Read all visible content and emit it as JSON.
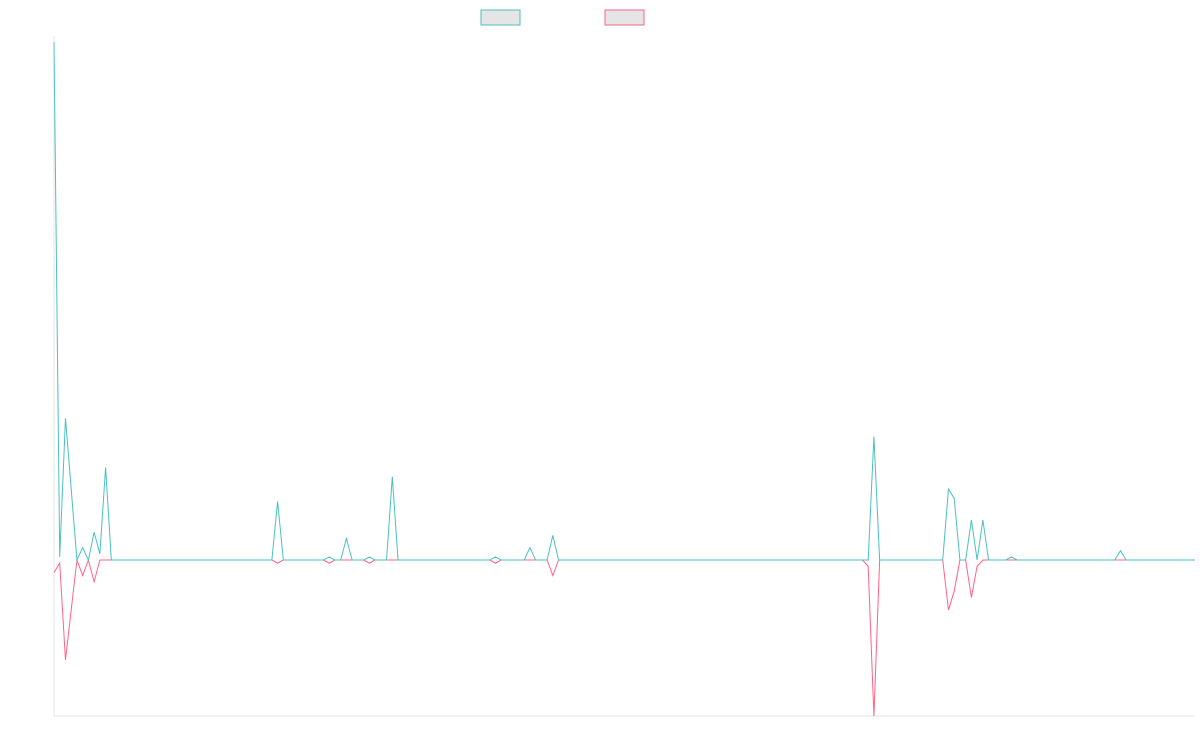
{
  "colors": {
    "series_a": "#4bc0c0",
    "series_b": "#ff6384",
    "legend_fill": "#e5e5e5",
    "axis": "#e6e6e6"
  },
  "chart_data": {
    "type": "line",
    "title": "",
    "xlabel": "",
    "ylabel": "",
    "grid": false,
    "legend_position": "top-center",
    "ylim": [
      -50,
      170
    ],
    "x_count": 200,
    "series": [
      {
        "name": "",
        "color_key": "series_a",
        "points": [
          [
            0,
            168
          ],
          [
            1,
            1
          ],
          [
            2,
            46
          ],
          [
            4,
            0
          ],
          [
            5,
            4
          ],
          [
            6,
            0
          ],
          [
            7,
            9
          ],
          [
            8,
            2
          ],
          [
            9,
            30
          ],
          [
            10,
            0
          ],
          [
            38,
            0
          ],
          [
            39,
            19
          ],
          [
            40,
            0
          ],
          [
            47,
            0
          ],
          [
            48,
            1
          ],
          [
            49,
            0
          ],
          [
            50,
            0
          ],
          [
            51,
            7
          ],
          [
            52,
            0
          ],
          [
            54,
            0
          ],
          [
            55,
            1
          ],
          [
            56,
            0
          ],
          [
            58,
            0
          ],
          [
            59,
            27
          ],
          [
            60,
            0
          ],
          [
            76,
            0
          ],
          [
            77,
            1
          ],
          [
            78,
            0
          ],
          [
            82,
            0
          ],
          [
            83,
            4
          ],
          [
            84,
            0
          ],
          [
            86,
            0
          ],
          [
            87,
            8
          ],
          [
            88,
            0
          ],
          [
            142,
            0
          ],
          [
            143,
            40
          ],
          [
            144,
            0
          ],
          [
            155,
            0
          ],
          [
            156,
            23
          ],
          [
            157,
            20
          ],
          [
            158,
            0
          ],
          [
            159,
            0
          ],
          [
            160,
            13
          ],
          [
            161,
            0
          ],
          [
            162,
            13
          ],
          [
            163,
            0
          ],
          [
            166,
            0
          ],
          [
            167,
            1
          ],
          [
            168,
            0
          ],
          [
            185,
            0
          ],
          [
            186,
            3
          ],
          [
            187,
            0
          ],
          [
            199,
            0
          ]
        ]
      },
      {
        "name": "",
        "color_key": "series_b",
        "points": [
          [
            0,
            -4
          ],
          [
            1,
            -1
          ],
          [
            2,
            -32
          ],
          [
            4,
            0
          ],
          [
            5,
            -5
          ],
          [
            6,
            0
          ],
          [
            7,
            -7
          ],
          [
            8,
            0
          ],
          [
            10,
            0
          ],
          [
            38,
            0
          ],
          [
            39,
            -1
          ],
          [
            40,
            0
          ],
          [
            47,
            0
          ],
          [
            48,
            -1
          ],
          [
            49,
            0
          ],
          [
            54,
            0
          ],
          [
            55,
            -1
          ],
          [
            56,
            0
          ],
          [
            76,
            0
          ],
          [
            77,
            -1
          ],
          [
            78,
            0
          ],
          [
            86,
            0
          ],
          [
            87,
            -5
          ],
          [
            88,
            0
          ],
          [
            141,
            0
          ],
          [
            142,
            -2
          ],
          [
            143,
            -50
          ],
          [
            144,
            0
          ],
          [
            155,
            0
          ],
          [
            156,
            -16
          ],
          [
            157,
            -10
          ],
          [
            158,
            0
          ],
          [
            159,
            0
          ],
          [
            160,
            -12
          ],
          [
            161,
            -2
          ],
          [
            162,
            0
          ],
          [
            166,
            0
          ],
          [
            167,
            0
          ],
          [
            199,
            0
          ]
        ]
      }
    ]
  }
}
